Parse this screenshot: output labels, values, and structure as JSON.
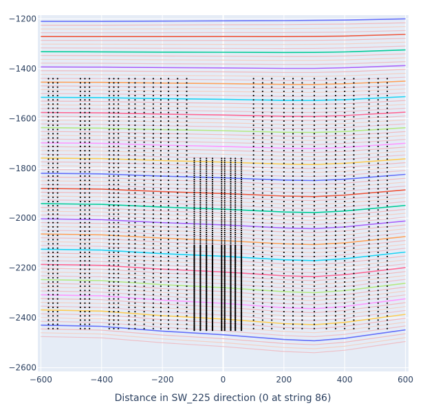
{
  "chart_data": {
    "type": "line",
    "title": "",
    "xlabel": "Distance in SW_225 direction (0 at string 86)",
    "ylabel": "",
    "xlim": [
      -610,
      610
    ],
    "ylim": [
      -2615,
      -1185
    ],
    "x_ticks": [
      -600,
      -400,
      -200,
      0,
      200,
      400,
      600
    ],
    "y_ticks": [
      -1200,
      -1400,
      -1600,
      -1800,
      -2000,
      -2200,
      -2400,
      -2600
    ],
    "x_tick_labels": [
      "−600",
      "−400",
      "−200",
      "0",
      "200",
      "400",
      "600"
    ],
    "y_tick_labels": [
      "−1200",
      "−1400",
      "−1600",
      "−1800",
      "−2000",
      "−2200",
      "−2400",
      "−2600"
    ],
    "grid": true,
    "legend": "none",
    "background": "#e5ecf6",
    "colors": [
      "#636efa",
      "#EF553B",
      "#00cc96",
      "#ab63fa",
      "#FFA15A",
      "#19d3f3",
      "#FF6692",
      "#B6E880",
      "#FF97FF",
      "#FECB52"
    ],
    "layer_lines": {
      "x": [
        -600,
        -400,
        -200,
        0,
        200,
        300,
        400,
        600
      ],
      "count": 84,
      "top_y": [
        -1210,
        -1210,
        -1209,
        -1208,
        -1207,
        -1206,
        -1205,
        -1200
      ],
      "bottom_y": [
        -2475,
        -2480,
        -2500,
        -2515,
        -2535,
        -2540,
        -2530,
        -2495
      ]
    },
    "dom_strings": {
      "x": [
        -575,
        -560,
        -545,
        -470,
        -455,
        -440,
        -375,
        -360,
        -345,
        -310,
        -290,
        -260,
        -230,
        -205,
        -180,
        -150,
        -120,
        -95,
        -75,
        -55,
        -35,
        -5,
        5,
        25,
        40,
        60,
        100,
        130,
        160,
        200,
        230,
        260,
        300,
        340,
        370,
        400,
        430,
        480,
        510,
        540
      ],
      "dense": [
        -95,
        -75,
        -55,
        -35,
        -5,
        5,
        25,
        40,
        60
      ],
      "y_top": -1440,
      "y_bottom": -2450,
      "spacing": 17
    }
  }
}
